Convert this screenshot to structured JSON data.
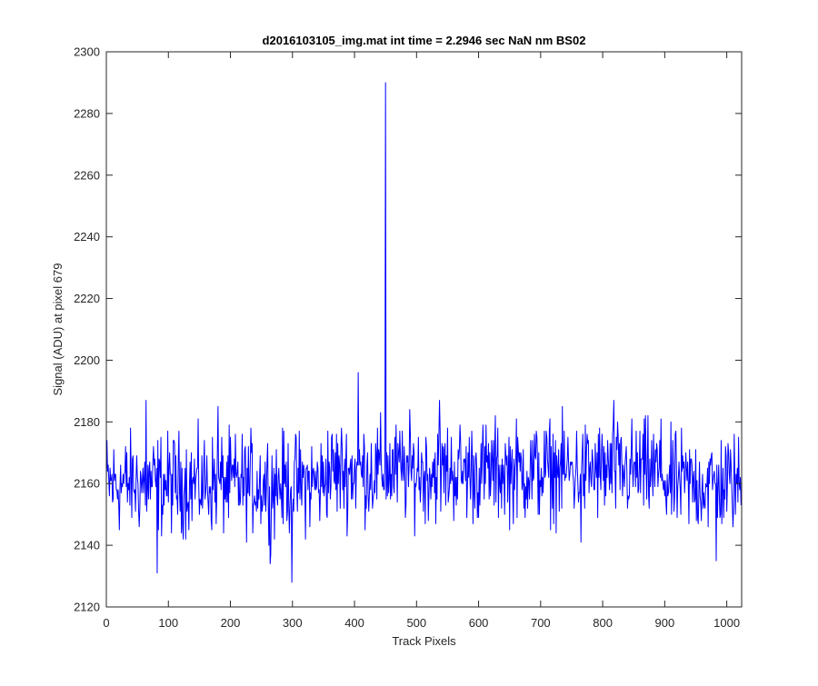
{
  "chart_data": {
    "type": "line",
    "title": "d2016103105_img.mat int time = 2.2946 sec  NaN nm BS02",
    "xlabel": "Track Pixels",
    "ylabel": "Signal (ADU) at pixel 679",
    "xlim": [
      0,
      1024
    ],
    "ylim": [
      2120,
      2300
    ],
    "xticks": [
      0,
      100,
      200,
      300,
      400,
      500,
      600,
      700,
      800,
      900,
      1000
    ],
    "yticks": [
      2120,
      2140,
      2160,
      2180,
      2200,
      2220,
      2240,
      2260,
      2280,
      2300
    ],
    "grid": false,
    "line_color": "#0000ff",
    "series": [
      {
        "n_points": 1024,
        "baseline": 2160,
        "noise_amplitude": 8,
        "notable_points": [
          {
            "x": 64,
            "y": 2187
          },
          {
            "x": 82,
            "y": 2131
          },
          {
            "x": 180,
            "y": 2185
          },
          {
            "x": 264,
            "y": 2134
          },
          {
            "x": 299,
            "y": 2128
          },
          {
            "x": 406,
            "y": 2196
          },
          {
            "x": 450,
            "y": 2290
          },
          {
            "x": 537,
            "y": 2187
          },
          {
            "x": 765,
            "y": 2141
          },
          {
            "x": 818,
            "y": 2187
          },
          {
            "x": 983,
            "y": 2135
          }
        ]
      }
    ]
  }
}
